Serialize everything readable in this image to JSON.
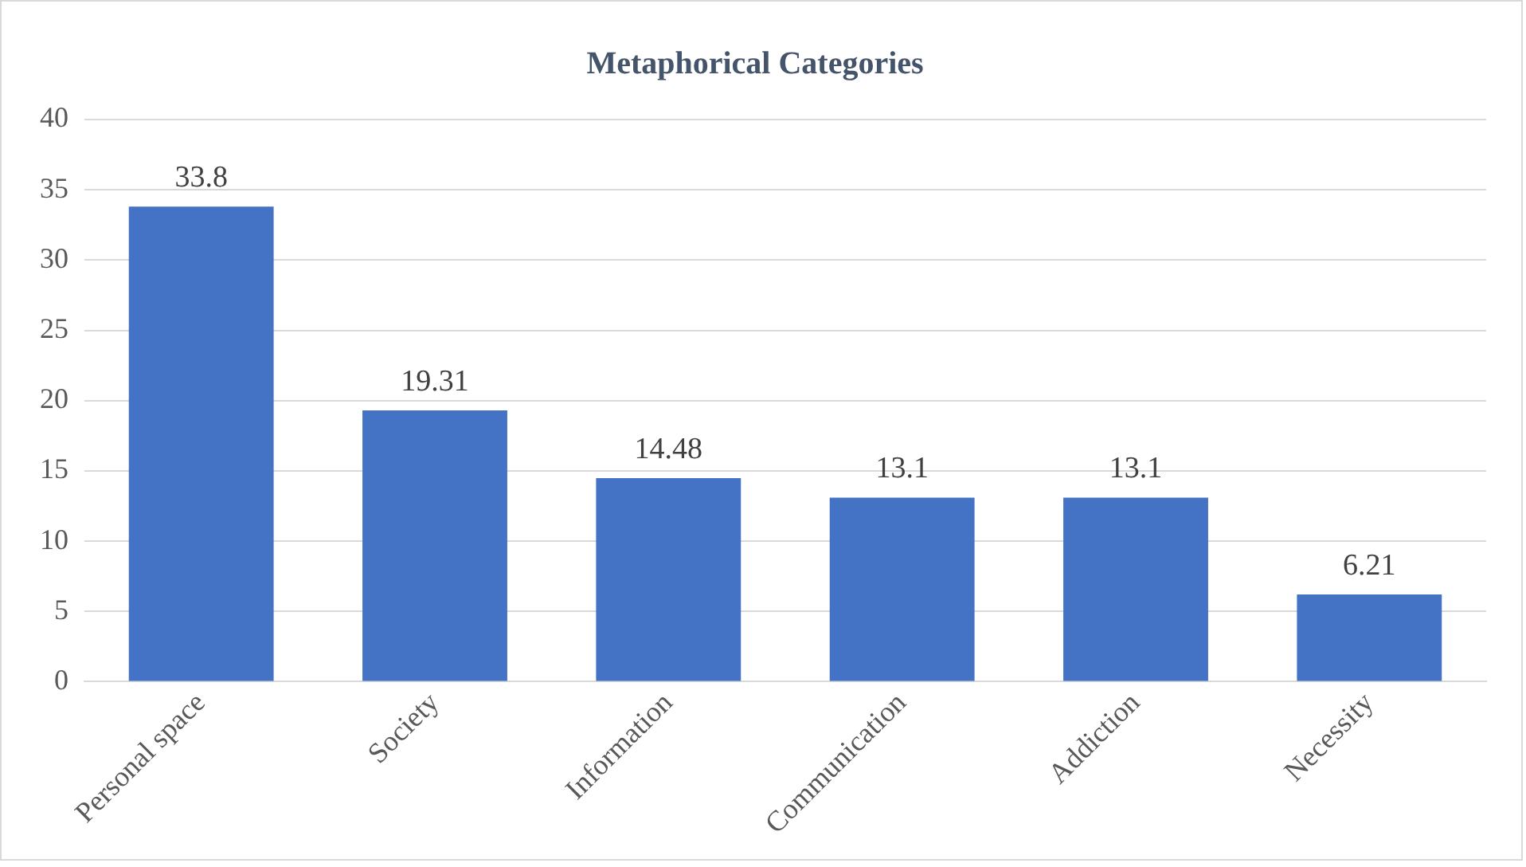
{
  "chart_data": {
    "type": "bar",
    "title": "Metaphorical Categories",
    "categories": [
      "Personal space",
      "Society",
      "Information",
      "Communication",
      "Addiction",
      "Necessity"
    ],
    "values": [
      33.8,
      19.31,
      14.48,
      13.1,
      13.1,
      6.21
    ],
    "color": "#4472c4",
    "ylim": [
      0,
      40
    ],
    "yticks": [
      0,
      5,
      10,
      15,
      20,
      25,
      30,
      35,
      40
    ],
    "grid": "y",
    "legend": false,
    "data_labels": true
  }
}
